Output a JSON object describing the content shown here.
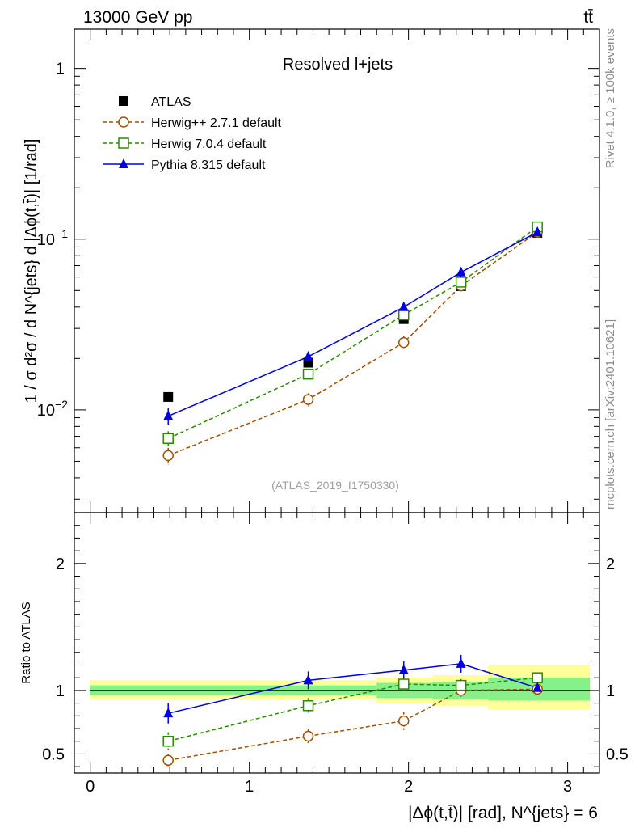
{
  "header": {
    "energy": "13000 GeV pp",
    "process": "tt̄",
    "side_rivet": "Rivet 4.1.0, ≥ 100k events",
    "side_site": "mcplots.cern.ch [arXiv:2401.10621]",
    "analysis_id": "(ATLAS_2019_I1750330)"
  },
  "chart_data": [
    {
      "type": "line",
      "panel": "main",
      "title": "Resolved l+jets",
      "ylabel": "1 / σ d²σ / d N^{jets} d |Δϕ(t,t̄)| [1/rad]",
      "yscale": "log",
      "ylim": [
        0.0025,
        1.7
      ],
      "xlim": [
        -0.1,
        3.2
      ],
      "ytick_labels": [
        "10^-2",
        "10^-1",
        "1"
      ],
      "x": [
        0.49,
        1.37,
        1.97,
        2.33,
        2.81
      ],
      "legend": [
        {
          "name": "ATLAS",
          "label": "ATLAS"
        },
        {
          "name": "Herwig++ 2.7.1 default",
          "label": "Herwig++ 2.7.1 default"
        },
        {
          "name": "Herwig 7.0.4 default",
          "label": "Herwig 7.0.4 default"
        },
        {
          "name": "Pythia 8.315 default",
          "label": "Pythia 8.315 default"
        }
      ],
      "series": [
        {
          "name": "ATLAS",
          "color": "#000000",
          "marker": "filled-square",
          "line": "none",
          "values": [
            0.0119,
            0.0189,
            0.034,
            0.053,
            0.109
          ],
          "errors": [
            0,
            0,
            0,
            0,
            0
          ]
        },
        {
          "name": "Herwig++ 2.7.1 default",
          "color": "#a05000",
          "marker": "open-circle",
          "line": "dashed",
          "values": [
            0.0054,
            0.0115,
            0.0248,
            0.0532,
            0.11
          ],
          "errors": [
            0.0006,
            0.001,
            0.0022,
            0.003,
            0.003
          ]
        },
        {
          "name": "Herwig 7.0.4 default",
          "color": "#2a8a00",
          "marker": "open-square",
          "line": "dashed",
          "values": [
            0.0068,
            0.0162,
            0.036,
            0.056,
            0.118
          ],
          "errors": [
            0.0007,
            0.0012,
            0.0025,
            0.003,
            0.003
          ]
        },
        {
          "name": "Pythia 8.315 default",
          "color": "#0000e0",
          "marker": "filled-triangle",
          "line": "solid",
          "values": [
            0.0092,
            0.0205,
            0.04,
            0.064,
            0.11
          ],
          "errors": [
            0.001,
            0.0015,
            0.003,
            0.004,
            0.003
          ]
        }
      ]
    },
    {
      "type": "line",
      "panel": "ratio",
      "ylabel": "Ratio to ATLAS",
      "xlabel": "|Δϕ(t,t̄)| [rad], N^{jets} = 6",
      "ylim": [
        0.35,
        2.4
      ],
      "xlim": [
        -0.1,
        3.2
      ],
      "xtick_labels": [
        "0",
        "1",
        "2",
        "3"
      ],
      "ytick_labels": [
        "0.5",
        "1",
        "2"
      ],
      "x": [
        0.49,
        1.37,
        1.97,
        2.33,
        2.81
      ],
      "bands": {
        "edges": [
          0.0,
          1.8,
          2.15,
          2.5,
          3.14
        ],
        "yellow": [
          [
            0.93,
            1.08
          ],
          [
            0.9,
            1.1
          ],
          [
            0.88,
            1.12
          ],
          [
            0.85,
            1.2
          ]
        ],
        "green": [
          [
            0.96,
            1.04
          ],
          [
            0.94,
            1.06
          ],
          [
            0.93,
            1.07
          ],
          [
            0.92,
            1.1
          ]
        ]
      },
      "series": [
        {
          "name": "Herwig++ 2.7.1 default",
          "color": "#a05000",
          "marker": "open-circle",
          "line": "dashed",
          "values": [
            0.45,
            0.64,
            0.76,
            1.0,
            1.01
          ],
          "errors": [
            0.05,
            0.06,
            0.07,
            0.05,
            0.03
          ]
        },
        {
          "name": "Herwig 7.0.4 default",
          "color": "#2a8a00",
          "marker": "open-square",
          "line": "dashed",
          "values": [
            0.6,
            0.88,
            1.05,
            1.04,
            1.1
          ],
          "errors": [
            0.07,
            0.06,
            0.06,
            0.05,
            0.03
          ]
        },
        {
          "name": "Pythia 8.315 default",
          "color": "#0000e0",
          "marker": "filled-triangle",
          "line": "solid",
          "values": [
            0.82,
            1.08,
            1.16,
            1.21,
            1.02
          ],
          "errors": [
            0.08,
            0.07,
            0.07,
            0.07,
            0.03
          ]
        }
      ]
    }
  ]
}
